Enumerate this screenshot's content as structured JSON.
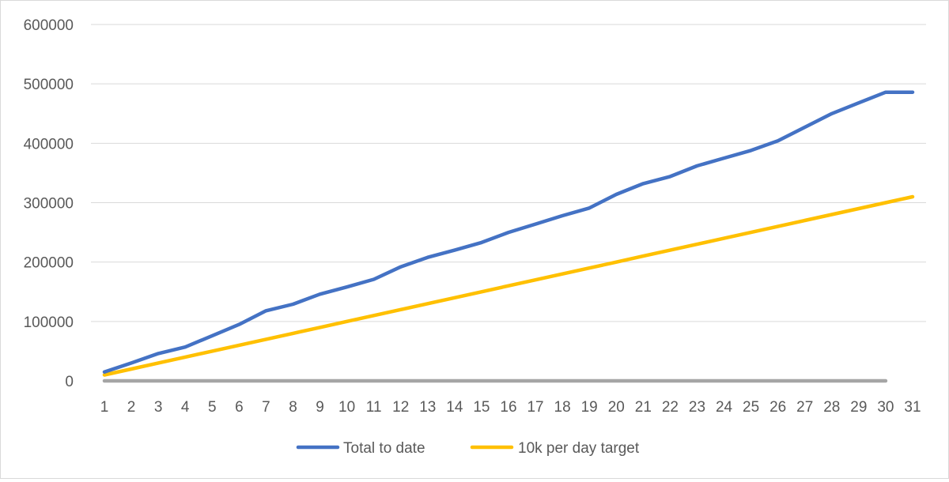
{
  "chart_data": {
    "type": "line",
    "title": "",
    "xlabel": "",
    "ylabel": "",
    "categories": [
      "1",
      "2",
      "3",
      "4",
      "5",
      "6",
      "7",
      "8",
      "9",
      "10",
      "11",
      "12",
      "13",
      "14",
      "15",
      "16",
      "17",
      "18",
      "19",
      "20",
      "21",
      "22",
      "23",
      "24",
      "25",
      "26",
      "27",
      "28",
      "29",
      "30",
      "31"
    ],
    "ylim": [
      0,
      600000
    ],
    "yticks": [
      "0",
      "100000",
      "200000",
      "300000",
      "400000",
      "500000",
      "600000"
    ],
    "grid": true,
    "legend_position": "bottom",
    "series": [
      {
        "name": "Total to date",
        "color": "#4472c4",
        "values": [
          15000,
          30000,
          46000,
          57000,
          76000,
          95000,
          118000,
          129000,
          146000,
          158000,
          171000,
          192000,
          208000,
          220000,
          233000,
          250000,
          264000,
          278000,
          291000,
          314000,
          332000,
          344000,
          362000,
          375000,
          388000,
          404000,
          427000,
          450000,
          468000,
          486000,
          486000
        ]
      },
      {
        "name": "10k per day target",
        "color": "#ffc000",
        "values": [
          10000,
          20000,
          30000,
          40000,
          50000,
          60000,
          70000,
          80000,
          90000,
          100000,
          110000,
          120000,
          130000,
          140000,
          150000,
          160000,
          170000,
          180000,
          190000,
          200000,
          210000,
          220000,
          230000,
          240000,
          250000,
          260000,
          270000,
          280000,
          290000,
          300000,
          310000
        ]
      },
      {
        "color": "#a5a5a5",
        "values": [
          0,
          0,
          0,
          0,
          0,
          0,
          0,
          0,
          0,
          0,
          0,
          0,
          0,
          0,
          0,
          0,
          0,
          0,
          0,
          0,
          0,
          0,
          0,
          0,
          0,
          0,
          0,
          0,
          0,
          0,
          null
        ]
      }
    ]
  }
}
